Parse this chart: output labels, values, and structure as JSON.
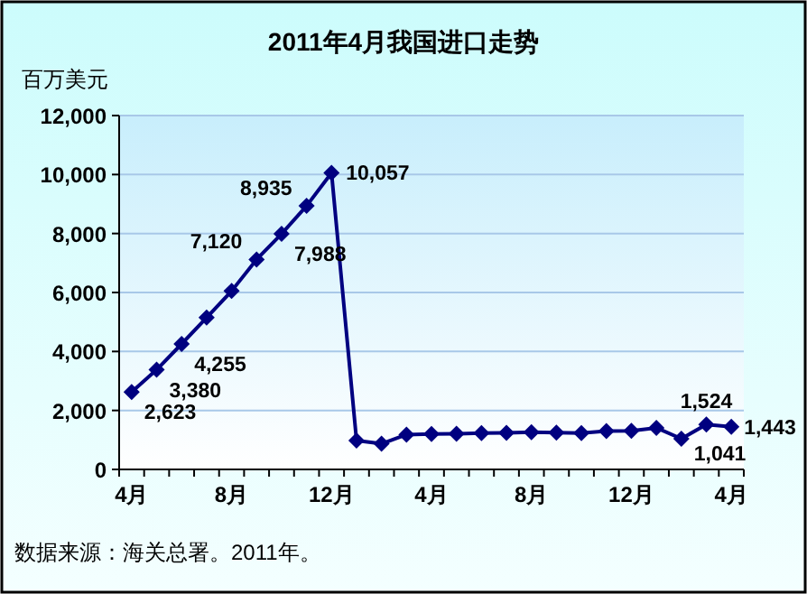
{
  "chart_data": {
    "type": "line",
    "title": "2011年4月我国进口走势",
    "ylabel": "百万美元",
    "categories": [
      "4月",
      null,
      null,
      null,
      "8月",
      null,
      null,
      null,
      "12月",
      null,
      null,
      null,
      "4月",
      null,
      null,
      null,
      "8月",
      null,
      null,
      null,
      "12月",
      null,
      null,
      null,
      "4月"
    ],
    "series": [
      {
        "color": "#000080",
        "values": [
          2623,
          3380,
          4255,
          5150,
          6050,
          7120,
          7988,
          8935,
          10057,
          980,
          870,
          1180,
          1200,
          1210,
          1230,
          1240,
          1260,
          1250,
          1230,
          1300,
          1310,
          1410,
          1041,
          1524,
          1443
        ],
        "value_labels": [
          "2,623",
          "3,380",
          "4,255",
          null,
          null,
          "7,120",
          "7,988",
          "8,935",
          "10,057",
          null,
          null,
          null,
          null,
          null,
          null,
          null,
          null,
          null,
          null,
          null,
          null,
          null,
          "1,041",
          "1,524",
          "1,443"
        ]
      }
    ],
    "ylim": [
      0,
      12000
    ],
    "yticks": [
      0,
      {
        "value": 2000,
        "label": "2,000"
      },
      {
        "value": 4000,
        "label": "4,000"
      },
      {
        "value": 6000,
        "label": "6,000"
      },
      {
        "value": 8000,
        "label": "8,000"
      },
      {
        "value": 10000,
        "label": "10,000"
      },
      {
        "value": 12000,
        "label": "12,000"
      }
    ],
    "grid": "y",
    "marker": "diamond",
    "line_style": "solid",
    "annotations": [
      "数据来源：海关总署。2011年。"
    ]
  }
}
